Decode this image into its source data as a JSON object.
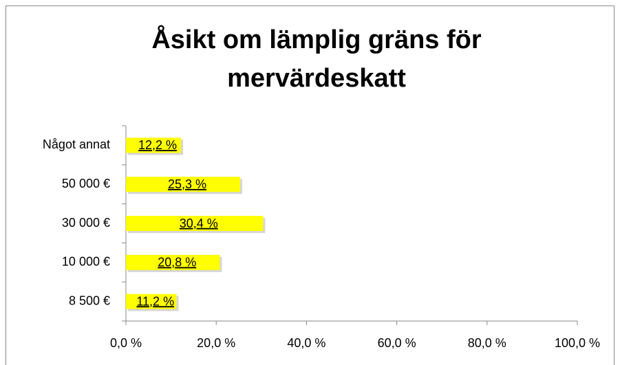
{
  "chart_data": {
    "type": "barh",
    "title": "Åsikt om lämplig gräns för mervärdeskatt",
    "categories": [
      "Något annat",
      "50 000 €",
      "30 000 €",
      "10 000 €",
      "8 500 €"
    ],
    "values": [
      12.2,
      25.3,
      30.4,
      20.8,
      11.2
    ],
    "value_labels": [
      "12,2 %",
      "25,3 %",
      "30,4 %",
      "20,8 %",
      "11,2 %"
    ],
    "color": "#ffff00",
    "xlim": [
      0,
      100
    ],
    "xticks": [
      {
        "value": 0,
        "label": "0,0 %"
      },
      {
        "value": 20,
        "label": "20,0 %"
      },
      {
        "value": 40,
        "label": "40,0 %"
      },
      {
        "value": 60,
        "label": "60,0 %"
      },
      {
        "value": 80,
        "label": "80,0 %"
      },
      {
        "value": 100,
        "label": "100,0 %"
      }
    ]
  }
}
